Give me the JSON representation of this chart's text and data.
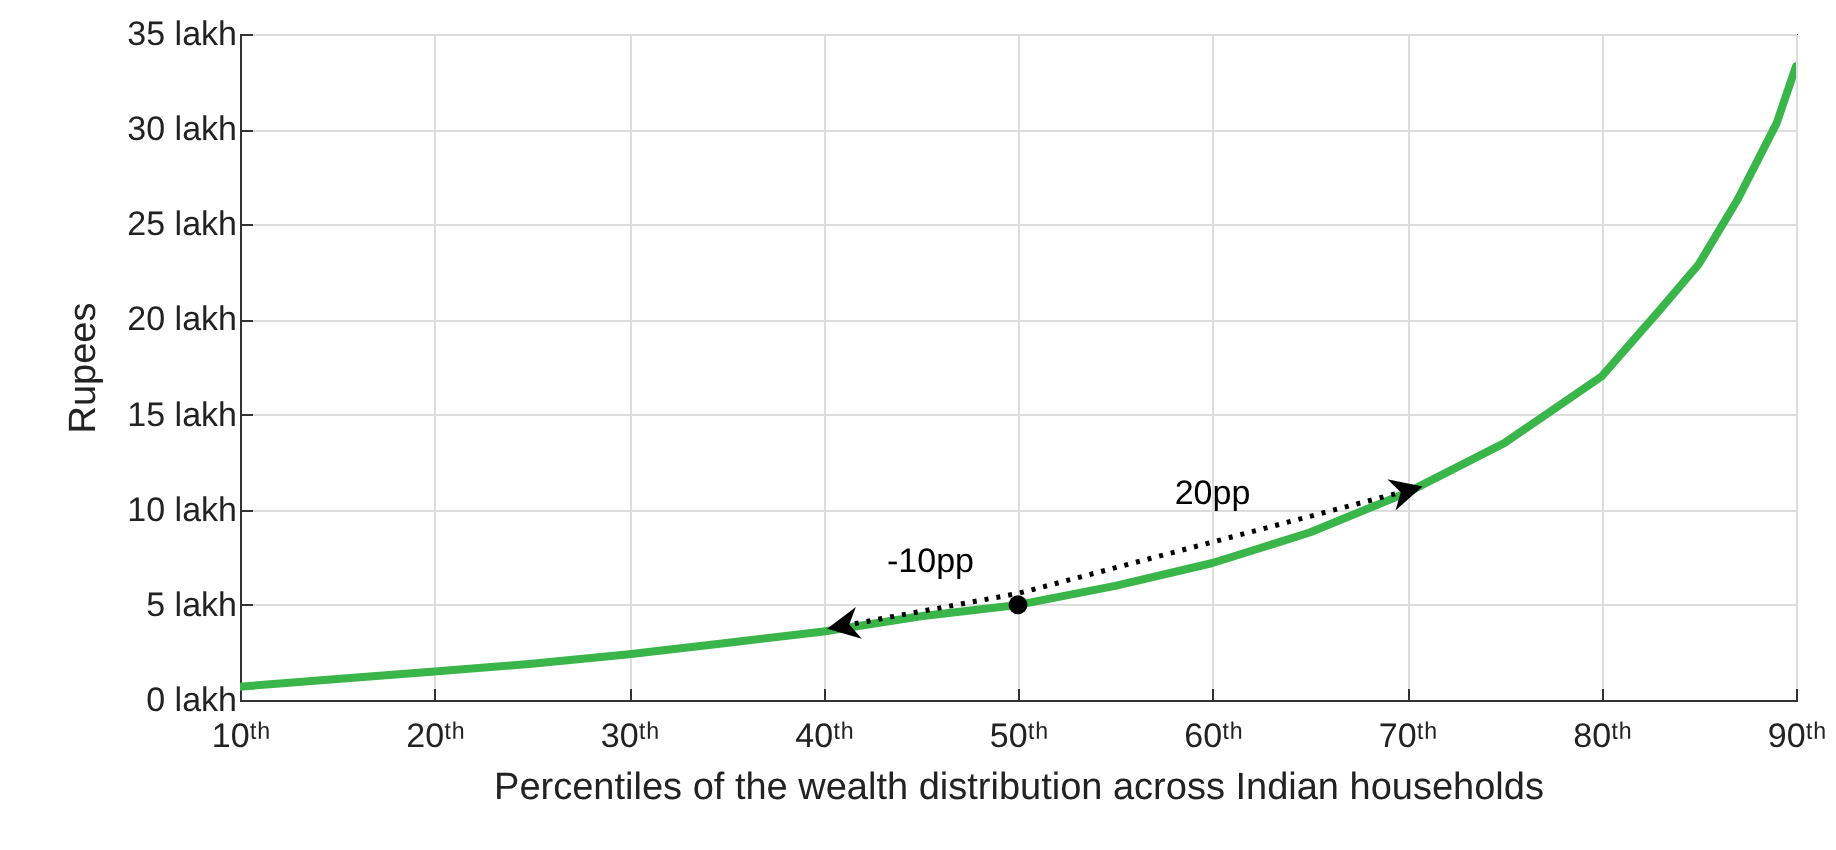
{
  "chart_data": {
    "type": "line",
    "xlabel": "Percentiles of the wealth distribution across Indian households",
    "ylabel": "Rupees",
    "x": [
      10,
      15,
      20,
      25,
      30,
      35,
      40,
      45,
      50,
      55,
      60,
      65,
      70,
      75,
      80,
      83,
      85,
      87,
      89,
      90
    ],
    "series": [
      {
        "color": "#39b54a",
        "values": [
          0.7,
          1.1,
          1.5,
          1.9,
          2.4,
          3.0,
          3.6,
          4.4,
          5.0,
          6.0,
          7.2,
          8.8,
          10.9,
          13.5,
          17.0,
          20.5,
          22.9,
          26.3,
          30.3,
          33.3
        ]
      },
      {
        "type": "line",
        "color": "#000000",
        "line_style": "dotted",
        "x": [
          41,
          50,
          70
        ],
        "values": [
          3.9,
          5.6,
          11.0
        ]
      },
      {
        "type": "scatter",
        "color": "#000000",
        "x": [
          50
        ],
        "values": [
          5.0
        ]
      }
    ],
    "annotations": [
      "-10pp",
      "20pp"
    ],
    "xlim": [
      10,
      90
    ],
    "ylim": [
      0,
      35
    ],
    "xticks": [
      {
        "value": 10,
        "label": "10ᵗʰ"
      },
      {
        "value": 20,
        "label": "20ᵗʰ"
      },
      {
        "value": 30,
        "label": "30ᵗʰ"
      },
      {
        "value": 40,
        "label": "40ᵗʰ"
      },
      {
        "value": 50,
        "label": "50ᵗʰ"
      },
      {
        "value": 60,
        "label": "60ᵗʰ"
      },
      {
        "value": 70,
        "label": "70ᵗʰ"
      },
      {
        "value": 80,
        "label": "80ᵗʰ"
      },
      {
        "value": 90,
        "label": "90ᵗʰ"
      }
    ],
    "yticks": [
      {
        "value": 0,
        "label": "0 lakh"
      },
      {
        "value": 5,
        "label": "5 lakh"
      },
      {
        "value": 10,
        "label": "10 lakh"
      },
      {
        "value": 15,
        "label": "15 lakh"
      },
      {
        "value": 20,
        "label": "20 lakh"
      },
      {
        "value": 25,
        "label": "25 lakh"
      },
      {
        "value": 30,
        "label": "30 lakh"
      },
      {
        "value": 35,
        "label": "35 lakh"
      }
    ],
    "grid": true
  }
}
